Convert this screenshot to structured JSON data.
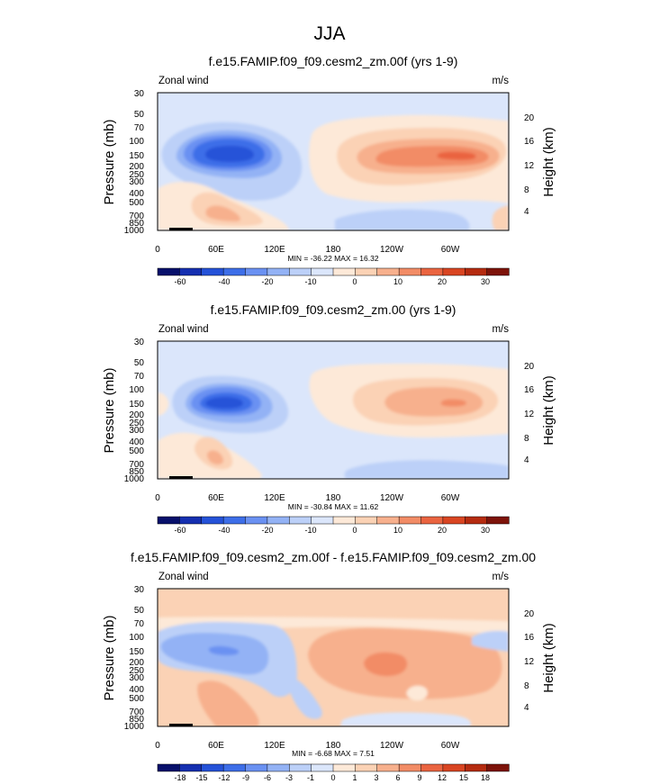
{
  "main_title": "JJA",
  "chart_data": [
    {
      "type": "contour",
      "title": "f.e15.FAMIP.f09_f09.cesm2_zm.00f (yrs 1-9)",
      "left_label": "Zonal wind",
      "right_label": "m/s",
      "ylabel": "Pressure (mb)",
      "y2label": "Height (km)",
      "pressure_ticks": [
        "30",
        "50",
        "70",
        "100",
        "150",
        "200",
        "250",
        "300",
        "400",
        "500",
        "700",
        "850",
        "1000"
      ],
      "height_ticks": [
        "20",
        "16",
        "12",
        "8",
        "4"
      ],
      "x_ticks": [
        "0",
        "60E",
        "120E",
        "180",
        "120W",
        "60W"
      ],
      "stats": "MIN = -36.22  MAX = 16.32",
      "colorbar_labels": [
        "-60",
        "-40",
        "-20",
        "-10",
        "0",
        "10",
        "20",
        "30"
      ],
      "colorbar_colors": [
        "#08106b",
        "#152fb0",
        "#2552d8",
        "#3d6ee8",
        "#6a91f2",
        "#93b2f5",
        "#bcd0f8",
        "#dbe6fb",
        "#fde9d8",
        "#fbd2b5",
        "#f7b08d",
        "#f28c66",
        "#ea6440",
        "#d94522",
        "#b52b10",
        "#7d130a"
      ]
    },
    {
      "type": "contour",
      "title": "f.e15.FAMIP.f09_f09.cesm2_zm.00 (yrs 1-9)",
      "left_label": "Zonal wind",
      "right_label": "m/s",
      "ylabel": "Pressure (mb)",
      "y2label": "Height (km)",
      "pressure_ticks": [
        "30",
        "50",
        "70",
        "100",
        "150",
        "200",
        "250",
        "300",
        "400",
        "500",
        "700",
        "850",
        "1000"
      ],
      "height_ticks": [
        "20",
        "16",
        "12",
        "8",
        "4"
      ],
      "x_ticks": [
        "0",
        "60E",
        "120E",
        "180",
        "120W",
        "60W"
      ],
      "stats": "MIN = -30.84  MAX = 11.62",
      "colorbar_labels": [
        "-60",
        "-40",
        "-20",
        "-10",
        "0",
        "10",
        "20",
        "30"
      ],
      "colorbar_colors": [
        "#08106b",
        "#152fb0",
        "#2552d8",
        "#3d6ee8",
        "#6a91f2",
        "#93b2f5",
        "#bcd0f8",
        "#dbe6fb",
        "#fde9d8",
        "#fbd2b5",
        "#f7b08d",
        "#f28c66",
        "#ea6440",
        "#d94522",
        "#b52b10",
        "#7d130a"
      ]
    },
    {
      "type": "contour",
      "title": "f.e15.FAMIP.f09_f09.cesm2_zm.00f - f.e15.FAMIP.f09_f09.cesm2_zm.00",
      "left_label": "Zonal wind",
      "right_label": "m/s",
      "ylabel": "Pressure (mb)",
      "y2label": "Height (km)",
      "pressure_ticks": [
        "30",
        "50",
        "70",
        "100",
        "150",
        "200",
        "250",
        "300",
        "400",
        "500",
        "700",
        "850",
        "1000"
      ],
      "height_ticks": [
        "20",
        "16",
        "12",
        "8",
        "4"
      ],
      "x_ticks": [
        "0",
        "60E",
        "120E",
        "180",
        "120W",
        "60W"
      ],
      "stats": "MIN = -6.68  MAX =  7.51",
      "colorbar_labels": [
        "-18",
        "-15",
        "-12",
        "-9",
        "-6",
        "-3",
        "-1",
        "0",
        "1",
        "3",
        "6",
        "9",
        "12",
        "15",
        "18"
      ],
      "colorbar_colors": [
        "#08106b",
        "#152fb0",
        "#2552d8",
        "#3d6ee8",
        "#6a91f2",
        "#93b2f5",
        "#bcd0f8",
        "#dbe6fb",
        "#fde9d8",
        "#fbd2b5",
        "#f7b08d",
        "#f28c66",
        "#ea6440",
        "#d94522",
        "#b52b10",
        "#7d130a"
      ]
    }
  ]
}
